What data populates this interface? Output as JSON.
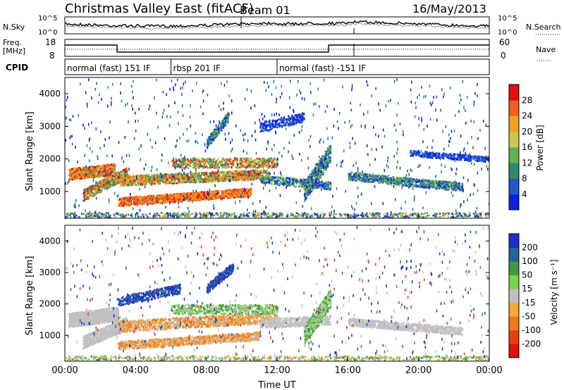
{
  "header": {
    "station": "Christmas Valley East (fitACF)",
    "beam": "Beam 01",
    "date": "16/May/2013"
  },
  "chart_data": [
    {
      "type": "line",
      "name": "noise",
      "left_label": "N.Sky",
      "right_label": "N.Search",
      "left_ticks": [
        "10^5",
        "10^0"
      ],
      "right_ticks": [
        "10^5",
        "10^0"
      ],
      "note": "noise level traces (log scale)"
    },
    {
      "type": "line",
      "name": "freq-nave",
      "left_label": "Freq.",
      "left_unit": "[MHz]",
      "right_label": "Nave",
      "left_ticks": [
        "18",
        "8"
      ],
      "right_ticks": [
        "60",
        "0"
      ],
      "ylim_left": [
        8,
        18
      ],
      "ylim_right": [
        0,
        60
      ]
    },
    {
      "type": "table",
      "name": "cpid",
      "label": "CPID",
      "segments": [
        {
          "text": "normal (fast) 151 IF",
          "start_h": 0.0,
          "end_h": 6.0
        },
        {
          "text": "rbsp 201 IF",
          "start_h": 6.0,
          "end_h": 12.0
        },
        {
          "text": "normal (fast) -151 IF",
          "start_h": 12.0,
          "end_h": 24.0
        }
      ]
    },
    {
      "type": "heatmap",
      "name": "power",
      "ylabel": "Slant Range [km]",
      "yticks": [
        1000,
        2000,
        3000,
        4000
      ],
      "ylim": [
        180,
        4500
      ],
      "xlim": [
        0,
        24
      ],
      "colorbar_label": "Power [dB]",
      "colorbar_ticks": [
        4,
        8,
        12,
        16,
        20,
        24,
        28
      ],
      "colorbar_range": [
        0,
        32
      ],
      "colors": [
        "#1020e0",
        "#2058c8",
        "#2f8a70",
        "#5eb050",
        "#c8c850",
        "#f0a020",
        "#f06020",
        "#e01010"
      ]
    },
    {
      "type": "heatmap",
      "name": "velocity",
      "ylabel": "Slant Range [km]",
      "yticks": [
        1000,
        2000,
        3000,
        4000
      ],
      "ylim": [
        180,
        4500
      ],
      "xlim": [
        0,
        24
      ],
      "xticks": [
        "00:00",
        "04:00",
        "08:00",
        "12:00",
        "16:00",
        "20:00",
        "00:00"
      ],
      "xlabel": "Time UT",
      "colorbar_label": "Velocity [m s⁻¹]",
      "colorbar_ticks": [
        "200",
        "100",
        "50",
        "15",
        "-15",
        "-50",
        "-100",
        "-200"
      ],
      "colors": [
        "#1a30c8",
        "#2c5e9c",
        "#3f9a3a",
        "#7cd448",
        "#c0c0c0",
        "#f2a83a",
        "#f07818",
        "#e84010",
        "#e01010"
      ]
    }
  ]
}
